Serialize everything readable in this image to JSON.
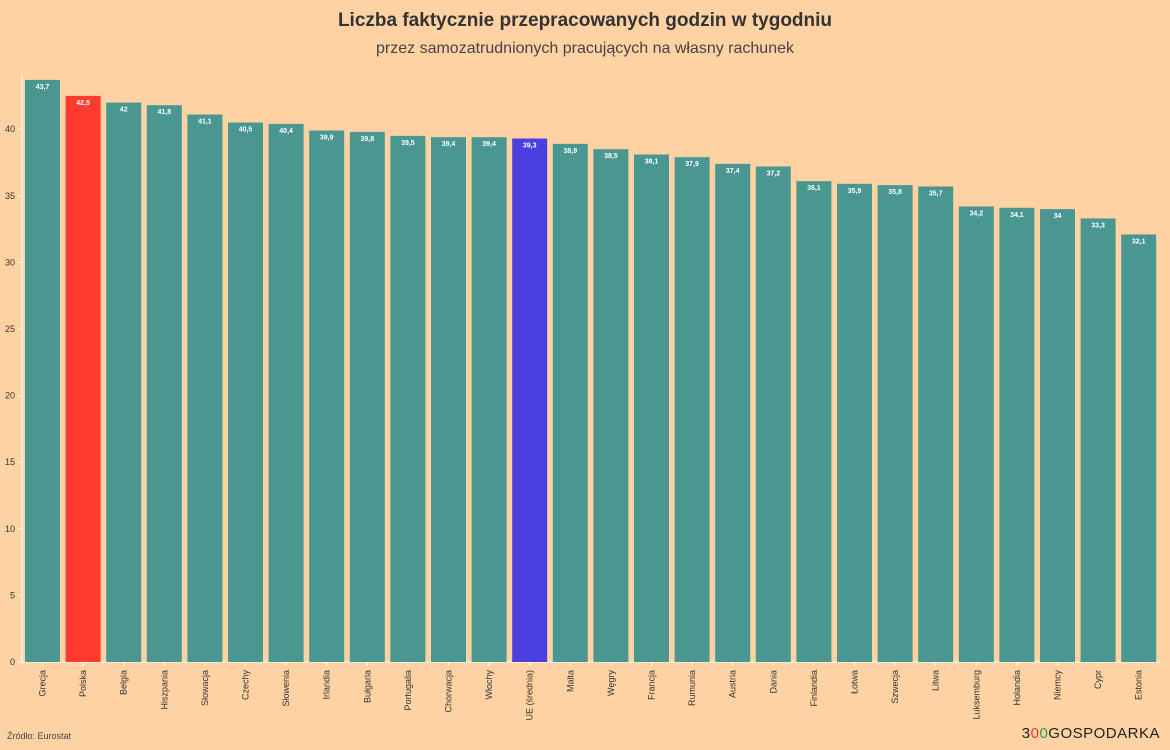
{
  "chart_data": {
    "type": "bar",
    "title": "Liczba faktycznie przepracowanych godzin w tygodniu",
    "subtitle": "przez samozatrudnionych pracujących na własny rachunek",
    "xlabel": "",
    "ylabel": "",
    "ylim": [
      0,
      44
    ],
    "yticks": [
      0,
      5,
      10,
      15,
      20,
      25,
      30,
      35,
      40
    ],
    "categories": [
      "Grecja",
      "Polska",
      "Belgia",
      "Hiszpania",
      "Słowacja",
      "Czechy",
      "Słowenia",
      "Irlandia",
      "Bułgaria",
      "Portugalia",
      "Chorwacja",
      "Włochy",
      "UE (średnia)",
      "Malta",
      "Węgry",
      "Francja",
      "Rumunia",
      "Austria",
      "Dania",
      "Finlandia",
      "Łotwa",
      "Szwecja",
      "Litwa",
      "Luksemburg",
      "Holandia",
      "Niemcy",
      "Cypr",
      "Estonia"
    ],
    "values": [
      43.7,
      42.5,
      42,
      41.8,
      41.1,
      40.5,
      40.4,
      39.9,
      39.8,
      39.5,
      39.4,
      39.4,
      39.3,
      38.9,
      38.5,
      38.1,
      37.9,
      37.4,
      37.2,
      36.1,
      35.9,
      35.8,
      35.7,
      34.2,
      34.1,
      34,
      33.3,
      32.1
    ],
    "value_labels": [
      "43,7",
      "42,5",
      "42",
      "41,8",
      "41,1",
      "40,5",
      "40,4",
      "39,9",
      "39,8",
      "39,5",
      "39,4",
      "39,4",
      "39,3",
      "38,9",
      "38,5",
      "38,1",
      "37,9",
      "37,4",
      "37,2",
      "36,1",
      "35,9",
      "35,8",
      "35,7",
      "34,2",
      "34,1",
      "34",
      "33,3",
      "32,1"
    ],
    "highlight": {
      "Polska": "#FF3B30",
      "UE (średnia)": "#4B3FE0"
    },
    "default_color": "#4A9690",
    "grid": false
  },
  "footer": {
    "source": "Źródło: Eurostat",
    "logo_parts": [
      "3",
      "0",
      "0",
      "GOSPODARKA"
    ]
  }
}
